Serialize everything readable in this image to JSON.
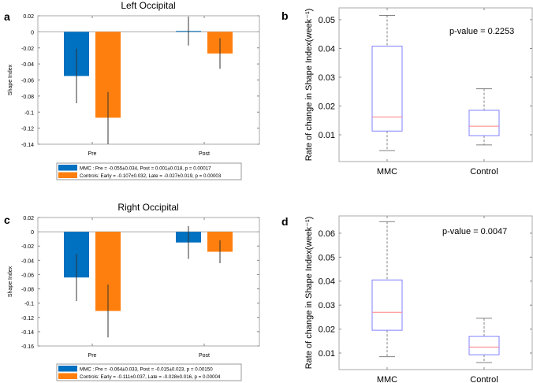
{
  "colors": {
    "mmc": "#0070c0",
    "controls": "#ff7f0e",
    "box": "#8080ff",
    "median": "#ff8080",
    "whisker": "#808080",
    "errorbar": "#333333"
  },
  "chart_data": [
    {
      "panel": "a",
      "type": "bar",
      "title": "Left Occipital",
      "ylabel": "Shape Index",
      "ylim": [
        -0.14,
        0.02
      ],
      "yticks": [
        "0.02",
        "0",
        "-0.02",
        "-0.04",
        "-0.06",
        "-0.08",
        "-0.1",
        "-0.12",
        "-0.14"
      ],
      "ytick_values": [
        0.02,
        0,
        -0.02,
        -0.04,
        -0.06,
        -0.08,
        -0.1,
        -0.12,
        -0.14
      ],
      "categories": [
        "Pre",
        "Post"
      ],
      "series": [
        {
          "name": "MMC",
          "values": [
            -0.055,
            0.001
          ],
          "err_low": [
            -0.089,
            -0.017
          ],
          "err_high": [
            -0.021,
            0.019
          ]
        },
        {
          "name": "Controls",
          "values": [
            -0.107,
            -0.027
          ],
          "err_low": [
            -0.14,
            -0.046
          ],
          "err_high": [
            -0.075,
            -0.008
          ]
        }
      ],
      "legend": [
        "MMC     : Pre = -0.055±0.034,   Post = 0.001±0.018, p  = 0.00017",
        "Controls: Early = -0.107±0.032,   Late = -0.027±0.019, p  = 0.00003"
      ],
      "legend_position": "bottom"
    },
    {
      "panel": "b",
      "type": "box",
      "title": "",
      "ylabel": "Rate of change in Shape Index(week⁻¹)",
      "ylim": [
        0.0007,
        0.0541
      ],
      "yticks": [
        "0.05",
        "0.04",
        "0.03",
        "0.02",
        "0.01"
      ],
      "ytick_values": [
        0.05,
        0.04,
        0.03,
        0.02,
        0.01
      ],
      "categories": [
        "MMC",
        "Control"
      ],
      "boxes": [
        {
          "min": 0.0045,
          "q1": 0.0113,
          "median": 0.0162,
          "q3": 0.0408,
          "max": 0.0515
        },
        {
          "min": 0.0065,
          "q1": 0.0097,
          "median": 0.013,
          "q3": 0.0185,
          "max": 0.026
        }
      ],
      "annotation": "p-value = 0.2253"
    },
    {
      "panel": "c",
      "type": "bar",
      "title": "Right Occipital",
      "ylabel": "Shape Index",
      "ylim": [
        -0.16,
        0.02
      ],
      "yticks": [
        "0.02",
        "0",
        "-0.02",
        "-0.04",
        "-0.06",
        "-0.08",
        "-0.1",
        "-0.12",
        "-0.14",
        "-0.16"
      ],
      "ytick_values": [
        0.02,
        0,
        -0.02,
        -0.04,
        -0.06,
        -0.08,
        -0.1,
        -0.12,
        -0.14,
        -0.16
      ],
      "categories": [
        "Pre",
        "Post"
      ],
      "series": [
        {
          "name": "MMC",
          "values": [
            -0.064,
            -0.015
          ],
          "err_low": [
            -0.097,
            -0.038
          ],
          "err_high": [
            -0.031,
            0.008
          ]
        },
        {
          "name": "Controls",
          "values": [
            -0.111,
            -0.028
          ],
          "err_low": [
            -0.148,
            -0.044
          ],
          "err_high": [
            -0.074,
            -0.012
          ]
        }
      ],
      "legend": [
        "MMC     : Pre = -0.064±0.033,   Post = -0.015±0.023, p  = 0.00150",
        "Controls: Early = -0.111±0.037,   Late = -0.028±0.016, p  = 0.00004"
      ],
      "legend_position": "bottom"
    },
    {
      "panel": "d",
      "type": "box",
      "title": "",
      "ylabel": "Rate of change in Shape Index(week⁻¹)",
      "ylim": [
        0.0031,
        0.0672
      ],
      "yticks": [
        "0.06",
        "0.05",
        "0.04",
        "0.03",
        "0.02",
        "0.01"
      ],
      "ytick_values": [
        0.06,
        0.05,
        0.04,
        0.03,
        0.02,
        0.01
      ],
      "categories": [
        "MMC",
        "Control"
      ],
      "boxes": [
        {
          "min": 0.0085,
          "q1": 0.0195,
          "median": 0.027,
          "q3": 0.0405,
          "max": 0.0648
        },
        {
          "min": 0.006,
          "q1": 0.0093,
          "median": 0.0125,
          "q3": 0.017,
          "max": 0.0245
        }
      ],
      "annotation": "p-value = 0.0047"
    }
  ]
}
